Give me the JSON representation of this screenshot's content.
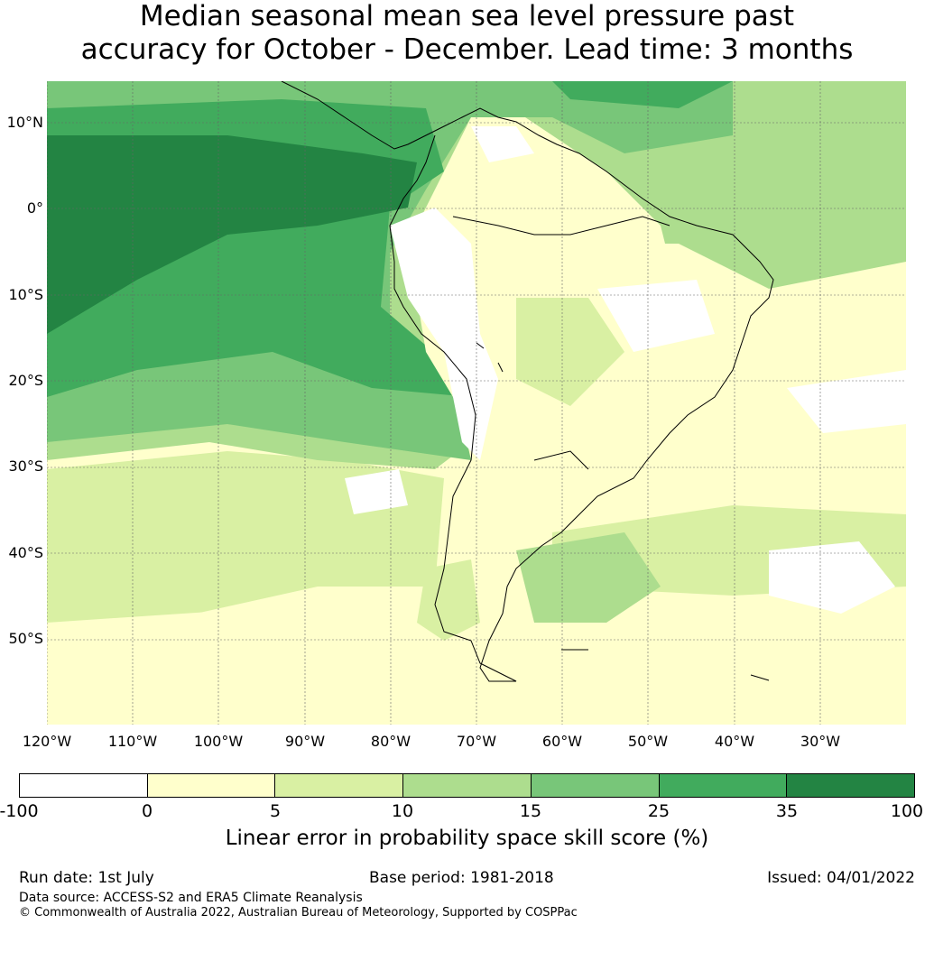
{
  "title_line1": "Median seasonal mean sea level pressure past",
  "title_line2": "accuracy for October - December. Lead time: 3 months",
  "lat_labels": [
    "10°N",
    "0°",
    "10°S",
    "20°S",
    "30°S",
    "40°S",
    "50°S"
  ],
  "lon_labels": [
    "120°W",
    "110°W",
    "100°W",
    "90°W",
    "80°W",
    "70°W",
    "60°W",
    "50°W",
    "40°W",
    "30°W"
  ],
  "legend": {
    "colors": [
      "#ffffff",
      "#ffffcc",
      "#d9f0a3",
      "#addd8e",
      "#78c679",
      "#41ab5d",
      "#238443"
    ],
    "ticks": [
      "-100",
      "0",
      "5",
      "10",
      "15",
      "25",
      "35",
      "100"
    ],
    "label": "Linear error in probability space skill score (%)"
  },
  "footer": {
    "run_date": "Run date: 1st July",
    "base_period": "Base period: 1981-2018",
    "issued": "Issued: 04/01/2022",
    "data_source": "Data source: ACCESS-S2 and ERA5 Climate Reanalysis",
    "copyright": "© Commonwealth of Australia 2022, Australian Bureau of Meteorology, Supported by COSPPac"
  }
}
